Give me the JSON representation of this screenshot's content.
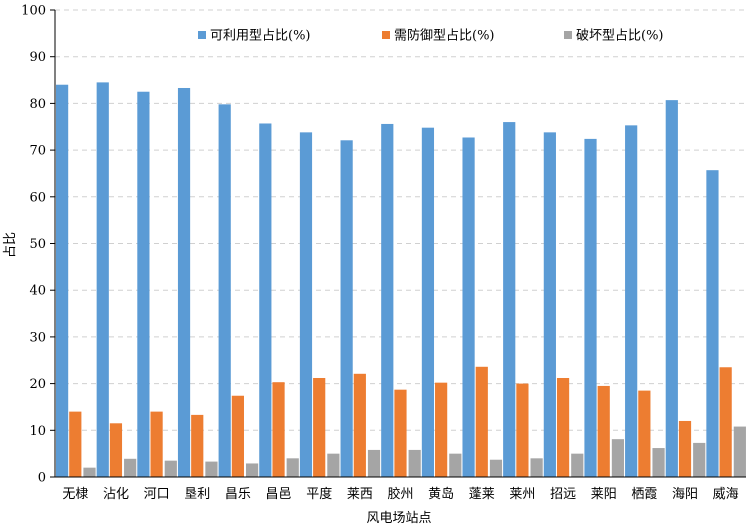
{
  "chart_data": {
    "type": "bar",
    "xlabel": "风电场站点",
    "ylabel": "占比",
    "ylim": [
      0,
      100
    ],
    "yticks": [
      0,
      10,
      20,
      30,
      40,
      50,
      60,
      70,
      80,
      90,
      100
    ],
    "grid": "horizontal-dashed",
    "legend_position": "top",
    "categories": [
      "无棣",
      "沾化",
      "河口",
      "垦利",
      "昌乐",
      "昌邑",
      "平度",
      "莱西",
      "胶州",
      "黄岛",
      "蓬莱",
      "莱州",
      "招远",
      "莱阳",
      "栖霞",
      "海阳",
      "威海"
    ],
    "series": [
      {
        "name": "可利用型占比(%)",
        "color": "#5b9bd5",
        "values": [
          84.0,
          84.5,
          82.5,
          83.3,
          79.8,
          75.7,
          73.8,
          72.1,
          75.6,
          74.8,
          72.7,
          76.0,
          73.8,
          72.4,
          75.3,
          80.7,
          65.7
        ]
      },
      {
        "name": "需防御型占比(%)",
        "color": "#ed7d31",
        "values": [
          14.0,
          11.5,
          14.0,
          13.3,
          17.4,
          20.3,
          21.2,
          22.1,
          18.7,
          20.2,
          23.6,
          20.0,
          21.2,
          19.5,
          18.5,
          12.0,
          23.5
        ]
      },
      {
        "name": "破坏型占比(%)",
        "color": "#a5a5a5",
        "values": [
          2.0,
          3.9,
          3.5,
          3.3,
          2.9,
          4.0,
          5.0,
          5.8,
          5.8,
          5.0,
          3.7,
          4.0,
          5.0,
          8.1,
          6.2,
          7.3,
          10.8
        ]
      }
    ]
  }
}
